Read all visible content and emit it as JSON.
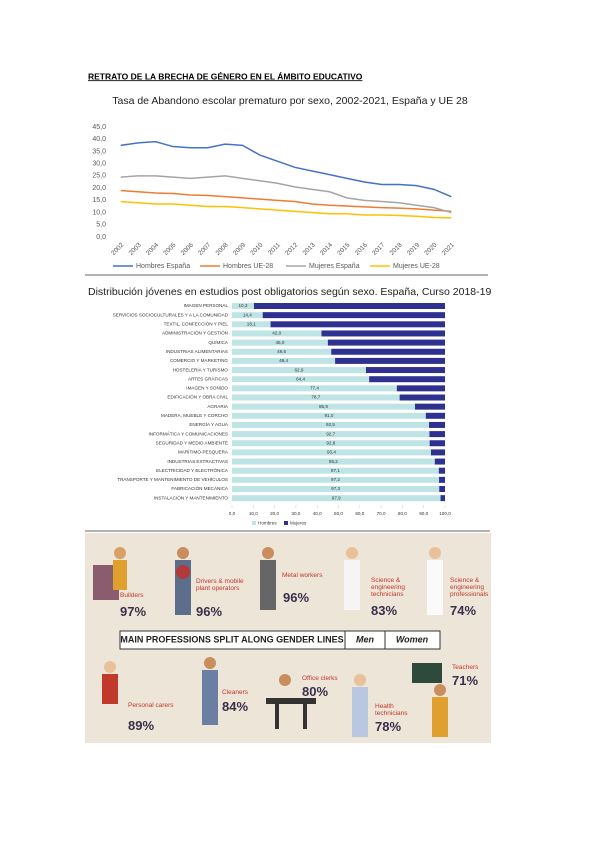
{
  "title": "RETRATO DE LA BRECHA DE GÉNERO EN EL ÁMBITO EDUCATIVO",
  "chart_data": [
    {
      "type": "line",
      "title": "Tasa de Abandono escolar prematuro por sexo, 2002-2021, España y UE 28",
      "categories": [
        "2002",
        "2003",
        "2004",
        "2005",
        "2006",
        "2007",
        "2008",
        "2009",
        "2010",
        "2011",
        "2012",
        "2013",
        "2014",
        "2015",
        "2016",
        "2017",
        "2018",
        "2019",
        "2020",
        "2021"
      ],
      "series": [
        {
          "name": "Hombres España",
          "color": "#4472c4",
          "values": [
            37.5,
            38.5,
            39,
            37,
            36.5,
            36.5,
            38,
            37.5,
            33.5,
            31,
            28.5,
            27,
            25.5,
            24,
            22.5,
            21.5,
            21.5,
            21,
            19.5,
            16.5
          ]
        },
        {
          "name": "Hombres UE-28",
          "color": "#ed7d31",
          "values": [
            19,
            18.5,
            18,
            17.8,
            17.2,
            17,
            16.5,
            16,
            15.5,
            15,
            14.5,
            13.5,
            13,
            12.7,
            12.3,
            12,
            11.8,
            11.5,
            11,
            10.5
          ]
        },
        {
          "name": "Mujeres España",
          "color": "#a5a5a5",
          "values": [
            24.5,
            25,
            25,
            24.5,
            24,
            24.5,
            25,
            24,
            23,
            22,
            20.5,
            19.5,
            18.5,
            16,
            15,
            14.5,
            14,
            13,
            12,
            10
          ]
        },
        {
          "name": "Mujeres UE-28",
          "color": "#ffc000",
          "values": [
            14.5,
            14,
            13.5,
            13.5,
            13,
            12.5,
            12.5,
            12,
            11.5,
            11,
            10.5,
            10,
            9.5,
            9.5,
            9,
            9,
            8.8,
            8.5,
            8,
            7.8
          ]
        }
      ],
      "ylim": [
        0,
        45
      ],
      "yticks": [
        {
          "value": 0,
          "label": "0,0"
        },
        {
          "value": 5,
          "label": "5,0"
        },
        {
          "value": 10,
          "label": "10,0"
        },
        {
          "value": 15,
          "label": "15,0"
        },
        {
          "value": 20,
          "label": "20,0"
        },
        {
          "value": 25,
          "label": "25,0"
        },
        {
          "value": 30,
          "label": "30,0"
        },
        {
          "value": 35,
          "label": "35,0"
        },
        {
          "value": 40,
          "label": "40,0"
        },
        {
          "value": 45,
          "label": "45,0"
        }
      ],
      "grid": false
    },
    {
      "type": "stacked-hbar",
      "title": "Distribución jóvenes en estudios post obligatorios según sexo. España, Curso 2018-19",
      "categories": [
        "IMAGEN PERSONAL",
        "SERVICIOS SOCIOCULTURALES Y A LA COMUNIDAD",
        "TEXTIL, CONFECCIÓN Y PIEL",
        "ADMINISTRACIÓN Y GESTIÓN",
        "QUÍMICA",
        "INDUSTRIAS ALIMENTARIAS",
        "COMERCIO Y MARKETING",
        "HOSTELERÍA Y TURISMO",
        "ARTES GRÁFICAS",
        "IMAGEN Y SONIDO",
        "EDIFICACIÓN Y OBRA CIVIL",
        "AGRARIA",
        "MADERA, MUEBLE Y CORCHO",
        "ENERGÍA Y AGUA",
        "INFORMÁTICA Y COMUNICACIONES",
        "SEGURIDAD Y MEDIO AMBIENTE",
        "MARÍTIMO-PESQUERA",
        "INDUSTRIAS EXTRACTIVAS",
        "ELECTRICIDAD Y ELECTRÓNICA",
        "TRANSPORTE Y MANTENIMIENTO DE VEHÍCULOS",
        "FABRICACIÓN MECÁNICA",
        "INSTALACIÓN Y MANTENIMIENTO"
      ],
      "series": [
        {
          "name": "Hombres",
          "color": "#bfe4e6",
          "values": [
            10.3,
            14.4,
            18.1,
            42.0,
            45.0,
            46.6,
            48.4,
            62.9,
            64.4,
            77.4,
            78.7,
            85.9,
            91.0,
            92.5,
            92.7,
            92.8,
            93.4,
            95.2,
            97.1,
            97.2,
            97.3,
            97.9
          ],
          "value_labels": [
            "10,3",
            "14,4",
            "18,1",
            "42,0",
            "45,0",
            "46,6",
            "48,4",
            "62,9",
            "64,4",
            "77,4",
            "78,7",
            "85,9",
            "91,0",
            "92,5",
            "92,7",
            "92,8",
            "93,4",
            "95,2",
            "97,1",
            "97,2",
            "97,3",
            "97,9"
          ]
        },
        {
          "name": "Mujeres",
          "color": "#2e318f",
          "values": [
            89.7,
            85.6,
            81.9,
            58.0,
            55.0,
            53.4,
            51.6,
            37.1,
            35.6,
            22.6,
            21.3,
            14.1,
            9.0,
            7.5,
            7.3,
            7.2,
            6.6,
            4.8,
            2.9,
            2.8,
            2.7,
            2.1
          ]
        }
      ],
      "xlim": [
        0,
        100
      ],
      "xticks": [
        {
          "value": 0,
          "label": "0,0"
        },
        {
          "value": 10,
          "label": "10,0"
        },
        {
          "value": 20,
          "label": "20,0"
        },
        {
          "value": 30,
          "label": "30,0"
        },
        {
          "value": 40,
          "label": "40,0"
        },
        {
          "value": 50,
          "label": "50,0"
        },
        {
          "value": 60,
          "label": "60,0"
        },
        {
          "value": 70,
          "label": "70,0"
        },
        {
          "value": 80,
          "label": "80,0"
        },
        {
          "value": 90,
          "label": "90,0"
        },
        {
          "value": 100,
          "label": "100,0"
        }
      ]
    }
  ],
  "infographic": {
    "banner": "MAIN PROFESSIONS SPLIT ALONG GENDER LINES",
    "men": "Men",
    "women": "Women",
    "items": [
      {
        "label": "Builders",
        "value": "97%"
      },
      {
        "label": "Drivers & mobile plant operators",
        "value": "96%"
      },
      {
        "label": "Metal workers",
        "value": "96%"
      },
      {
        "label": "Science & engineering technicians",
        "value": "83%"
      },
      {
        "label": "Science & engineering professionals",
        "value": "74%"
      },
      {
        "label": "Personal carers",
        "value": "89%"
      },
      {
        "label": "Cleaners",
        "value": "84%"
      },
      {
        "label": "Office clerks",
        "value": "80%"
      },
      {
        "label": "Health technicians",
        "value": "78%"
      },
      {
        "label": "Teachers",
        "value": "71%"
      }
    ]
  }
}
